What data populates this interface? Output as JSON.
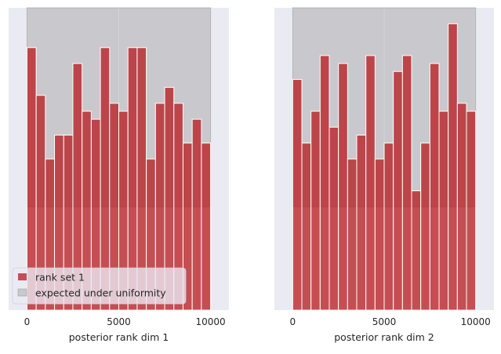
{
  "chart_data": [
    {
      "type": "bar",
      "title": "",
      "xlabel": "posterior rank dim 1",
      "ylabel": "",
      "xlim": [
        -1000,
        11000
      ],
      "ylim": [
        0,
        38
      ],
      "xticks": [
        0,
        5000,
        10000
      ],
      "xtick_labels": [
        "0",
        "5000",
        "10000"
      ],
      "bin_edges": [
        0,
        500,
        1000,
        1500,
        2000,
        2500,
        3000,
        3500,
        4000,
        4500,
        5000,
        5500,
        6000,
        6500,
        7000,
        7500,
        8000,
        8500,
        9000,
        9500,
        10000
      ],
      "series": [
        {
          "name": "rank set 1",
          "color": "#b8191e",
          "values": [
            33,
            27,
            19,
            22,
            22,
            31,
            25,
            24,
            33,
            26,
            25,
            33,
            33,
            19,
            26,
            28,
            26,
            21,
            24,
            21
          ]
        }
      ],
      "expected_band": {
        "name": "expected under uniformity",
        "color": "#a0a0a0",
        "lower": 13,
        "upper": 38
      },
      "legend": {
        "location": "lower-left",
        "entries": [
          "rank set 1",
          "expected under uniformity"
        ]
      },
      "grid": true
    },
    {
      "type": "bar",
      "title": "",
      "xlabel": "posterior rank dim 2",
      "ylabel": "",
      "xlim": [
        -1000,
        11000
      ],
      "ylim": [
        0,
        38
      ],
      "xticks": [
        0,
        5000,
        10000
      ],
      "xtick_labels": [
        "0",
        "5000",
        "10000"
      ],
      "bin_edges": [
        0,
        500,
        1000,
        1500,
        2000,
        2500,
        3000,
        3500,
        4000,
        4500,
        5000,
        5500,
        6000,
        6500,
        7000,
        7500,
        8000,
        8500,
        9000,
        9500,
        10000
      ],
      "series": [
        {
          "name": "rank set 1",
          "color": "#b8191e",
          "values": [
            29,
            21,
            25,
            32,
            23,
            31,
            19,
            22,
            32,
            19,
            21,
            30,
            32,
            15,
            21,
            31,
            25,
            36,
            26,
            25
          ]
        }
      ],
      "expected_band": {
        "name": "expected under uniformity",
        "color": "#a0a0a0",
        "lower": 13,
        "upper": 38
      },
      "legend": null,
      "grid": true
    }
  ]
}
